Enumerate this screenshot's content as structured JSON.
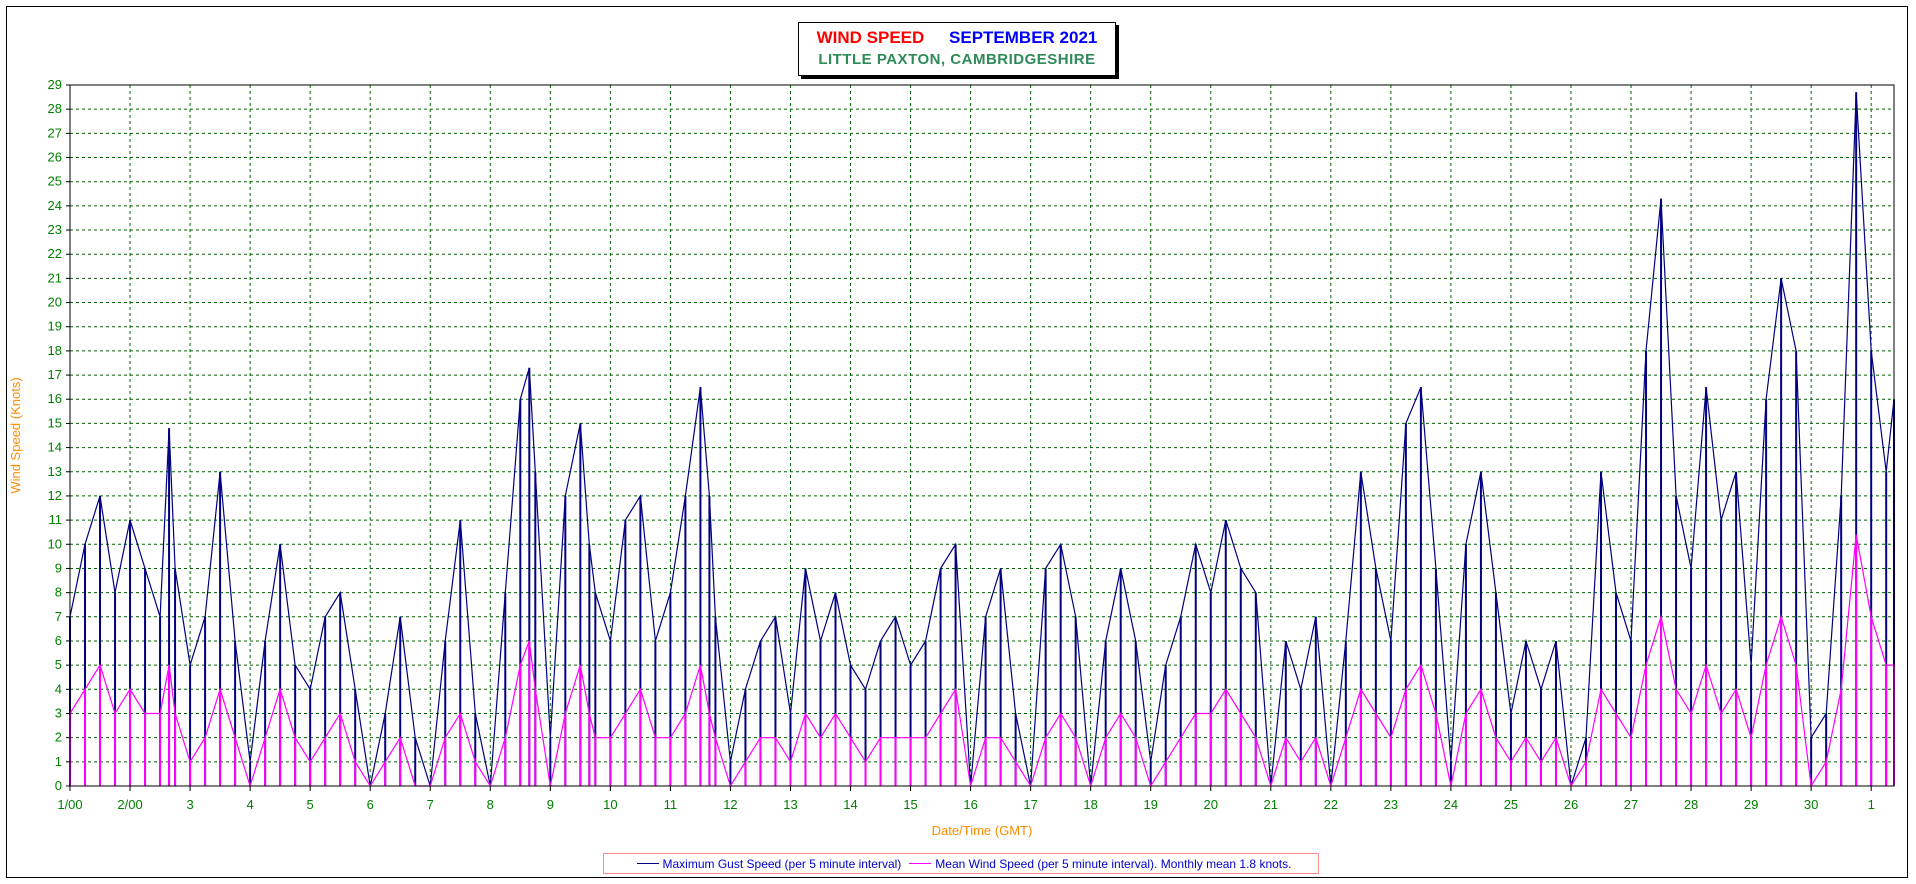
{
  "title": {
    "main": "WIND SPEED",
    "month": "SEPTEMBER 2021",
    "location": "LITTLE PAXTON, CAMBRIDGESHIRE"
  },
  "chart_data": {
    "type": "line",
    "xlabel": "Date/Time (GMT)",
    "ylabel": "Wind Speed (Knots)",
    "ylim": [
      0,
      29
    ],
    "xlim": [
      1,
      31.38
    ],
    "grid": true,
    "x_tick_labels": [
      "1/00",
      "2/00",
      "3",
      "4",
      "5",
      "6",
      "7",
      "8",
      "9",
      "10",
      "11",
      "12",
      "13",
      "14",
      "15",
      "16",
      "17",
      "18",
      "19",
      "20",
      "21",
      "22",
      "23",
      "24",
      "25",
      "26",
      "27",
      "28",
      "29",
      "30",
      "1"
    ],
    "y_ticks": [
      0,
      1,
      2,
      3,
      4,
      5,
      6,
      7,
      8,
      9,
      10,
      11,
      12,
      13,
      14,
      15,
      16,
      17,
      18,
      19,
      20,
      21,
      22,
      23,
      24,
      25,
      26,
      27,
      28,
      29
    ],
    "series": [
      {
        "name": "Maximum Gust Speed (per 5 minute interval)",
        "color": "#000080",
        "x": [
          1.0,
          1.25,
          1.5,
          1.75,
          2.0,
          2.25,
          2.5,
          2.65,
          2.75,
          3.0,
          3.25,
          3.5,
          3.75,
          4.0,
          4.25,
          4.5,
          4.75,
          5.0,
          5.25,
          5.5,
          5.75,
          6.0,
          6.25,
          6.5,
          6.75,
          7.0,
          7.25,
          7.5,
          7.75,
          8.0,
          8.25,
          8.5,
          8.65,
          8.75,
          9.0,
          9.25,
          9.5,
          9.65,
          9.75,
          10.0,
          10.25,
          10.5,
          10.75,
          11.0,
          11.25,
          11.5,
          11.65,
          11.75,
          12.0,
          12.25,
          12.5,
          12.75,
          13.0,
          13.25,
          13.5,
          13.75,
          14.0,
          14.25,
          14.5,
          14.75,
          15.0,
          15.25,
          15.5,
          15.75,
          16.0,
          16.25,
          16.5,
          16.75,
          17.0,
          17.25,
          17.5,
          17.75,
          18.0,
          18.25,
          18.5,
          18.75,
          19.0,
          19.25,
          19.5,
          19.75,
          20.0,
          20.25,
          20.5,
          20.75,
          21.0,
          21.25,
          21.5,
          21.75,
          22.0,
          22.25,
          22.5,
          22.75,
          23.0,
          23.25,
          23.5,
          23.75,
          24.0,
          24.25,
          24.5,
          24.75,
          25.0,
          25.25,
          25.5,
          25.75,
          26.0,
          26.25,
          26.5,
          26.75,
          27.0,
          27.25,
          27.5,
          27.75,
          28.0,
          28.25,
          28.5,
          28.75,
          29.0,
          29.25,
          29.5,
          29.75,
          30.0,
          30.25,
          30.5,
          30.75,
          31.0,
          31.25,
          31.38
        ],
        "y": [
          7,
          10,
          12,
          8,
          11,
          9,
          7,
          14.8,
          9,
          5,
          7,
          13,
          6,
          1,
          6,
          10,
          5,
          4,
          7,
          8,
          4,
          0,
          3,
          7,
          2,
          0,
          6,
          11,
          3,
          0,
          8,
          16,
          17.3,
          13,
          2,
          12,
          15,
          10,
          8,
          6,
          11,
          12,
          6,
          8,
          12,
          16.5,
          12,
          7,
          1,
          4,
          6,
          7,
          3,
          9,
          6,
          8,
          5,
          4,
          6,
          7,
          5,
          6,
          9,
          10,
          0,
          7,
          9,
          3,
          0,
          9,
          10,
          7,
          0,
          6,
          9,
          6,
          1,
          5,
          7,
          10,
          8,
          11,
          9,
          8,
          0,
          6,
          4,
          7,
          0,
          6,
          13,
          9,
          6,
          15,
          16.5,
          9,
          1,
          10,
          13,
          8,
          3,
          6,
          4,
          6,
          0,
          2,
          13,
          8,
          6,
          18,
          24.3,
          12,
          9,
          16.5,
          11,
          13,
          5,
          16,
          21,
          18,
          2,
          3,
          12,
          28.7,
          18,
          13,
          16
        ]
      },
      {
        "name": "Mean Wind Speed (per 5 minute interval). Monthly mean 1.8 knots.",
        "color": "#ff00ff",
        "x": [
          1.0,
          1.25,
          1.5,
          1.75,
          2.0,
          2.25,
          2.5,
          2.65,
          2.75,
          3.0,
          3.25,
          3.5,
          3.75,
          4.0,
          4.25,
          4.5,
          4.75,
          5.0,
          5.25,
          5.5,
          5.75,
          6.0,
          6.25,
          6.5,
          6.75,
          7.0,
          7.25,
          7.5,
          7.75,
          8.0,
          8.25,
          8.5,
          8.65,
          8.75,
          9.0,
          9.25,
          9.5,
          9.65,
          9.75,
          10.0,
          10.25,
          10.5,
          10.75,
          11.0,
          11.25,
          11.5,
          11.65,
          11.75,
          12.0,
          12.25,
          12.5,
          12.75,
          13.0,
          13.25,
          13.5,
          13.75,
          14.0,
          14.25,
          14.5,
          14.75,
          15.0,
          15.25,
          15.5,
          15.75,
          16.0,
          16.25,
          16.5,
          16.75,
          17.0,
          17.25,
          17.5,
          17.75,
          18.0,
          18.25,
          18.5,
          18.75,
          19.0,
          19.25,
          19.5,
          19.75,
          20.0,
          20.25,
          20.5,
          20.75,
          21.0,
          21.25,
          21.5,
          21.75,
          22.0,
          22.25,
          22.5,
          22.75,
          23.0,
          23.25,
          23.5,
          23.75,
          24.0,
          24.25,
          24.5,
          24.75,
          25.0,
          25.25,
          25.5,
          25.75,
          26.0,
          26.25,
          26.5,
          26.75,
          27.0,
          27.25,
          27.5,
          27.75,
          28.0,
          28.25,
          28.5,
          28.75,
          29.0,
          29.25,
          29.5,
          29.75,
          30.0,
          30.25,
          30.5,
          30.75,
          31.0,
          31.25,
          31.38
        ],
        "y": [
          3,
          4,
          5,
          3,
          4,
          3,
          3,
          5,
          3,
          1,
          2,
          4,
          2,
          0,
          2,
          4,
          2,
          1,
          2,
          3,
          1,
          0,
          1,
          2,
          0,
          0,
          2,
          3,
          1,
          0,
          2,
          5,
          6,
          4,
          0,
          3,
          5,
          3,
          2,
          2,
          3,
          4,
          2,
          2,
          3,
          5,
          3,
          2,
          0,
          1,
          2,
          2,
          1,
          3,
          2,
          3,
          2,
          1,
          2,
          2,
          2,
          2,
          3,
          4,
          0,
          2,
          2,
          1,
          0,
          2,
          3,
          2,
          0,
          2,
          3,
          2,
          0,
          1,
          2,
          3,
          3,
          4,
          3,
          2,
          0,
          2,
          1,
          2,
          0,
          2,
          4,
          3,
          2,
          4,
          5,
          3,
          0,
          3,
          4,
          2,
          1,
          2,
          1,
          2,
          0,
          1,
          4,
          3,
          2,
          5,
          7,
          4,
          3,
          5,
          3,
          4,
          2,
          5,
          7,
          5,
          0,
          1,
          4,
          10.4,
          7,
          5,
          5
        ]
      }
    ]
  },
  "legend": {
    "gust_label": "Maximum Gust Speed (per 5 minute interval)",
    "mean_label": "Mean Wind Speed (per 5 minute interval). Monthly mean 1.8 knots."
  }
}
